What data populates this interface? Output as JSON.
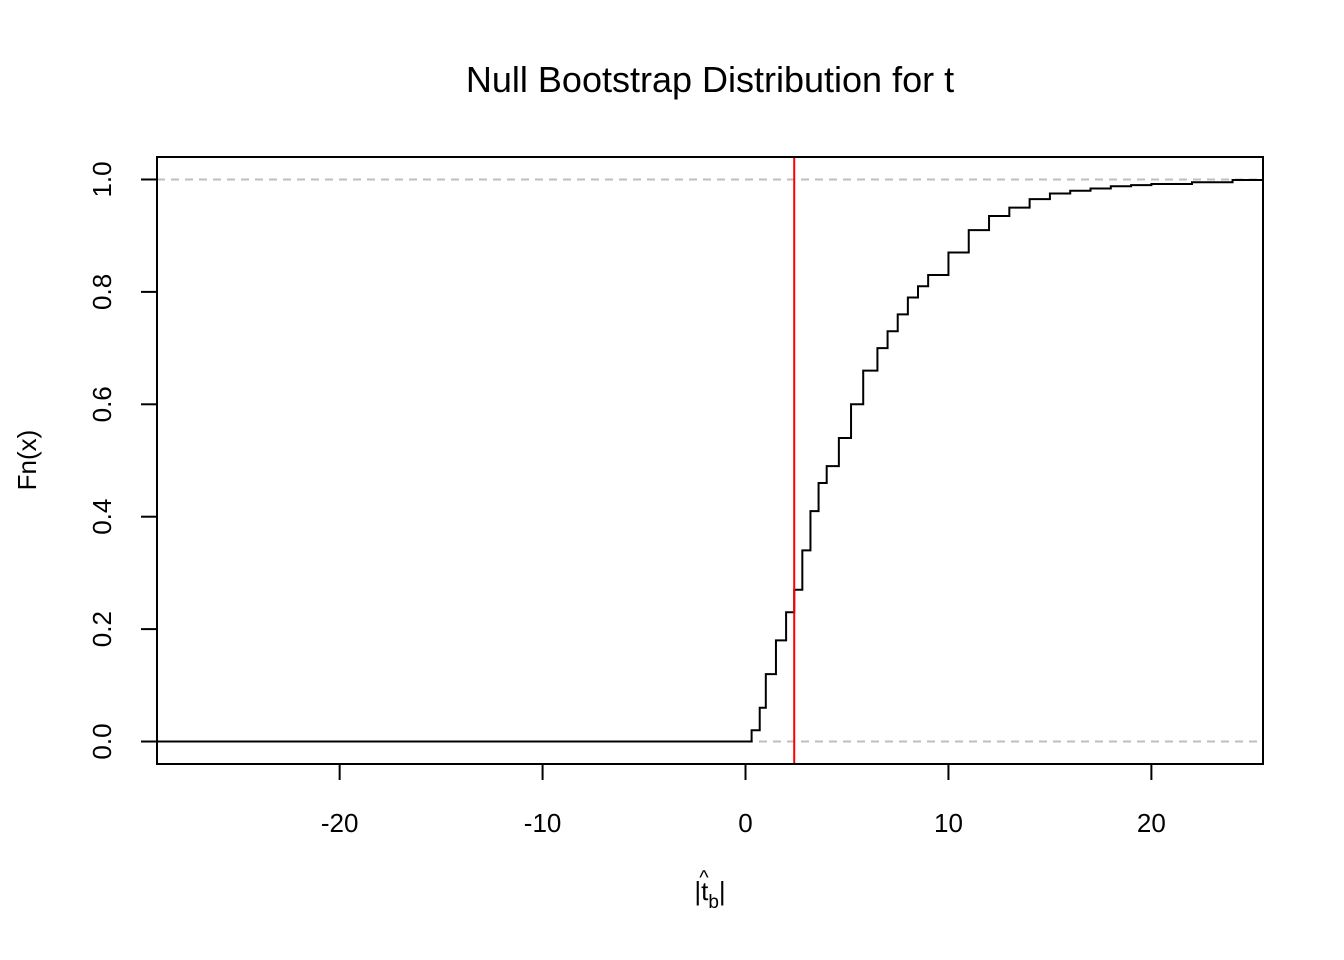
{
  "chart_data": {
    "type": "line",
    "subtype": "ecdf-step",
    "title": "Null Bootstrap Distribution for t",
    "xlabel": "|t̂_b|",
    "ylabel": "Fn(x)",
    "xlim": [
      -29,
      25.5
    ],
    "ylim": [
      -0.04,
      1.04
    ],
    "x_ticks": [
      -20,
      -10,
      0,
      10,
      20
    ],
    "x_tick_labels": [
      "-20",
      "-10",
      "0",
      "10",
      "20"
    ],
    "y_ticks": [
      0,
      0.2,
      0.4,
      0.6,
      0.8,
      1
    ],
    "y_tick_labels": [
      "0.0",
      "0.2",
      "0.4",
      "0.6",
      "0.8",
      "1.0"
    ],
    "grid": false,
    "reference_hlines": [
      {
        "y": 0,
        "color": "#bebebe",
        "style": "dashed"
      },
      {
        "y": 1,
        "color": "#bebebe",
        "style": "dashed"
      }
    ],
    "reference_vline": {
      "x": 2.4,
      "color": "#ff0000"
    },
    "series": [
      {
        "color": "#000000",
        "x": [
          -29,
          0,
          0.3,
          0.7,
          1.0,
          1.5,
          2.0,
          2.4,
          2.8,
          3.2,
          3.6,
          4.0,
          4.6,
          5.2,
          5.8,
          6.5,
          7.0,
          7.5,
          8.0,
          8.5,
          9.0,
          10.0,
          11.0,
          12.0,
          13.0,
          14.0,
          15.0,
          16.0,
          17.0,
          18.0,
          19.0,
          20.0,
          22.0,
          24.0,
          25.5
        ],
        "y": [
          0,
          0,
          0.02,
          0.06,
          0.12,
          0.18,
          0.23,
          0.27,
          0.34,
          0.41,
          0.46,
          0.49,
          0.54,
          0.6,
          0.66,
          0.7,
          0.73,
          0.76,
          0.79,
          0.81,
          0.83,
          0.87,
          0.91,
          0.935,
          0.95,
          0.965,
          0.975,
          0.98,
          0.984,
          0.988,
          0.99,
          0.992,
          0.995,
          0.999,
          1.0
        ]
      }
    ]
  }
}
